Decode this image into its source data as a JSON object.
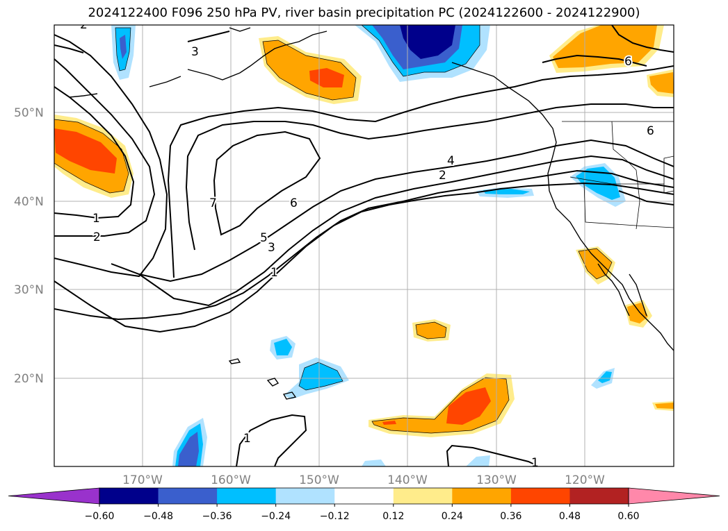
{
  "title": "2024122400 F096 250 hPa PV, river basin precipitation PC (2024122600 - 2024122900)",
  "map": {
    "lat_labels": [
      "50°N",
      "40°N",
      "30°N",
      "20°N"
    ],
    "lon_labels": [
      "170°W",
      "160°W",
      "150°W",
      "140°W",
      "130°W",
      "120°W"
    ],
    "contour_labels": [
      "1",
      "2",
      "3",
      "4",
      "5",
      "6",
      "7",
      "1",
      "2",
      "1",
      "1",
      "3",
      "6",
      "6",
      "2"
    ]
  },
  "colorbar": {
    "ticks": [
      "−0.60",
      "−0.48",
      "−0.36",
      "−0.24",
      "−0.12",
      "0.12",
      "0.24",
      "0.36",
      "0.48",
      "0.60"
    ],
    "colors": [
      "#9932cc",
      "#00008b",
      "#3a5fcd",
      "#00bfff",
      "#b0e2ff",
      "#ffffff",
      "#ffec8b",
      "#ffa500",
      "#ff4500",
      "#b22222",
      "#ff88aa"
    ]
  },
  "colors": {
    "pv_contour": "#000000",
    "coast": "#000000",
    "grid": "#b0b0b0",
    "neg_light": "#b0e2ff",
    "neg_mid": "#00bfff",
    "neg_dark": "#3a5fcd",
    "neg_darkest": "#00008b",
    "pos_light": "#ffec8b",
    "pos_mid": "#ffa500",
    "pos_dark": "#ff4500"
  }
}
